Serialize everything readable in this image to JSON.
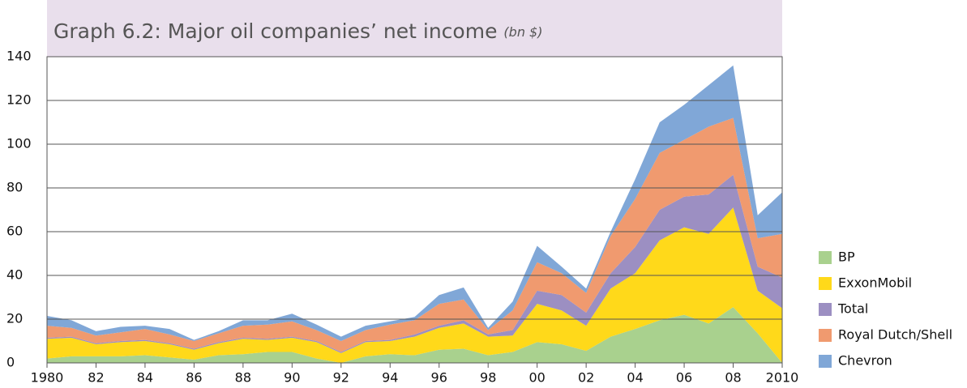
{
  "chart_data": {
    "type": "stacked_area",
    "title": "Graph 6.2: Major oil companies’ net income",
    "title_unit": "(bn $)",
    "x": [
      1980,
      1981,
      1982,
      1983,
      1984,
      1985,
      1986,
      1987,
      1988,
      1989,
      1990,
      1991,
      1992,
      1993,
      1994,
      1995,
      1996,
      1997,
      1998,
      1999,
      2000,
      2001,
      2002,
      2003,
      2004,
      2005,
      2006,
      2007,
      2008,
      2009,
      2010
    ],
    "series": [
      {
        "name": "BP",
        "color": "#a9d18e",
        "values": [
          2,
          3,
          3,
          3,
          3.5,
          2.5,
          1.5,
          3.5,
          4,
          5,
          5,
          2,
          0,
          3,
          4,
          3.5,
          6,
          6.5,
          3.5,
          5,
          9.5,
          8.5,
          5.5,
          12,
          15.5,
          19.5,
          22,
          18,
          25.5,
          13.5,
          0
        ]
      },
      {
        "name": "ExxonMobil",
        "color": "#ffd91a",
        "values": [
          9,
          8.5,
          5.5,
          6.5,
          6.5,
          6,
          4.5,
          5.5,
          7,
          5.5,
          6.5,
          7.5,
          4.5,
          6.5,
          6,
          8.5,
          10,
          11.5,
          8.5,
          7.5,
          17.5,
          15.5,
          11.5,
          22,
          25.5,
          36.5,
          40,
          41,
          45.5,
          19.5,
          25
        ]
      },
      {
        "name": "Total",
        "color": "#9c8fc2",
        "values": [
          0.5,
          0.5,
          0.5,
          0.5,
          0.5,
          0.5,
          0.5,
          0.5,
          0.5,
          0.5,
          0.5,
          0.5,
          0.5,
          0.5,
          0.5,
          1,
          1,
          1.5,
          1,
          2.5,
          6,
          7,
          6,
          7,
          12,
          14,
          14,
          18,
          15,
          11,
          14
        ]
      },
      {
        "name": "Royal Dutch/Shell",
        "color": "#f09a6f",
        "values": [
          5.5,
          4,
          3.5,
          4,
          5,
          4,
          3.5,
          4,
          5.5,
          6.5,
          7,
          5,
          5,
          5,
          7,
          6.5,
          10,
          9.5,
          2,
          9,
          13,
          10,
          9,
          17,
          22,
          26,
          26,
          31,
          26,
          13,
          20
        ]
      },
      {
        "name": "Chevron",
        "color": "#80a7d7",
        "values": [
          4.5,
          3.5,
          2,
          2.5,
          1.5,
          2.5,
          0.5,
          1,
          2.5,
          2,
          3.5,
          2.5,
          2,
          2,
          1.5,
          1.5,
          4,
          5.5,
          1,
          4,
          7.5,
          3,
          2,
          2,
          9,
          14,
          16,
          19,
          24,
          10.5,
          19
        ]
      }
    ],
    "xlim": [
      1980,
      2010
    ],
    "xticks": [
      1980,
      {
        "value": 1982,
        "label": "82"
      },
      {
        "value": 1984,
        "label": "84"
      },
      {
        "value": 1986,
        "label": "86"
      },
      {
        "value": 1988,
        "label": "88"
      },
      {
        "value": 1990,
        "label": "90"
      },
      {
        "value": 1992,
        "label": "92"
      },
      {
        "value": 1994,
        "label": "94"
      },
      {
        "value": 1996,
        "label": "96"
      },
      {
        "value": 1998,
        "label": "98"
      },
      {
        "value": 2000,
        "label": "00"
      },
      {
        "value": 2002,
        "label": "02"
      },
      {
        "value": 2004,
        "label": "04"
      },
      {
        "value": 2006,
        "label": "06"
      },
      {
        "value": 2008,
        "label": "08"
      },
      2010
    ],
    "ylim": [
      0,
      140
    ],
    "yticks": [
      0,
      20,
      40,
      60,
      80,
      100,
      120,
      140
    ],
    "grid": true,
    "legend": "right"
  }
}
